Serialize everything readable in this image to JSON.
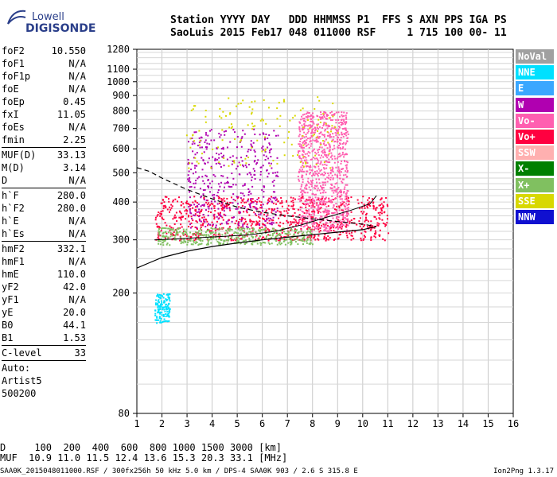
{
  "logo": {
    "line1": "Lowell",
    "line2": "DIGISONDE"
  },
  "header": {
    "line1": "Station YYYY DAY   DDD HHMMSS P1  FFS S AXN PPS IGA PS",
    "line2": "SaoLuis 2015 Feb17 048 011000 RSF     1 715 100 00- 11"
  },
  "params": [
    {
      "k": "foF2",
      "v": "10.550"
    },
    {
      "k": "foF1",
      "v": "N/A"
    },
    {
      "k": "foF1p",
      "v": "N/A"
    },
    {
      "k": "foE",
      "v": "N/A"
    },
    {
      "k": "foEp",
      "v": "0.45"
    },
    {
      "k": "fxI",
      "v": "11.05"
    },
    {
      "k": "foEs",
      "v": "N/A"
    },
    {
      "k": "fmin",
      "v": "2.25"
    },
    {
      "sep": true
    },
    {
      "k": "MUF(D)",
      "v": "33.13"
    },
    {
      "k": "M(D)",
      "v": "3.14"
    },
    {
      "k": "D",
      "v": "N/A"
    },
    {
      "sep": true
    },
    {
      "k": "h`F",
      "v": "280.0"
    },
    {
      "k": "h`F2",
      "v": "280.0"
    },
    {
      "k": "h`E",
      "v": "N/A"
    },
    {
      "k": "h`Es",
      "v": "N/A"
    },
    {
      "sep": true
    },
    {
      "k": "hmF2",
      "v": "332.1"
    },
    {
      "k": "hmF1",
      "v": "N/A"
    },
    {
      "k": "hmE",
      "v": "110.0"
    },
    {
      "k": "yF2",
      "v": "42.0"
    },
    {
      "k": "yF1",
      "v": "N/A"
    },
    {
      "k": "yE",
      "v": "20.0"
    },
    {
      "k": "B0",
      "v": "44.1"
    },
    {
      "k": "B1",
      "v": "1.53"
    },
    {
      "sep": true
    },
    {
      "k": "C-level",
      "v": "33"
    },
    {
      "sep": true
    },
    {
      "k": "Auto:",
      "v": ""
    },
    {
      "k": "Artist5",
      "v": ""
    },
    {
      "k": "500200",
      "v": ""
    }
  ],
  "legend": [
    {
      "label": "NoVal",
      "color": "#a0a0a0"
    },
    {
      "label": "NNE",
      "color": "#00e0ff"
    },
    {
      "label": "E",
      "color": "#3aa7ff"
    },
    {
      "label": "W",
      "color": "#b000b0"
    },
    {
      "label": "Vo-",
      "color": "#ff5fb0"
    },
    {
      "label": "Vo+",
      "color": "#ff0040"
    },
    {
      "label": "SSW",
      "color": "#ffb0b0"
    },
    {
      "label": "X-",
      "color": "#008000"
    },
    {
      "label": "X+",
      "color": "#80c060"
    },
    {
      "label": "SSE",
      "color": "#d8d800"
    },
    {
      "label": "NNW",
      "color": "#1010d0"
    }
  ],
  "footer": {
    "d_line": "D     100  200  400  600  800 1000 1500 3000 [km]",
    "muf_line": "MUF  10.9 11.0 11.5 12.4 13.6 15.3 20.3 33.1 [MHz]",
    "file_line": "SAA0K_2015048011000.RSF / 300fx256h 50 kHz 5.0 km / DPS-4 SAA0K 903 / 2.6 S 315.8 E",
    "version": "Ion2Png 1.3.17"
  },
  "chart_data": {
    "type": "scatter",
    "xlim": [
      1,
      16
    ],
    "x_ticks": [
      "1",
      "2",
      "3",
      "4",
      "5",
      "6",
      "7",
      "8",
      "9",
      "10",
      "11",
      "12",
      "13",
      "14",
      "15",
      "16"
    ],
    "ylim": [
      80,
      1280
    ],
    "y_ticks": [
      "80",
      "200",
      "300",
      "400",
      "500",
      "600",
      "700",
      "800",
      "900",
      "1000",
      "1100",
      "1280"
    ],
    "y_scale": "log",
    "grid": true,
    "traces": [
      {
        "name": "Vo+",
        "color": "#ff0040",
        "x0": 1.7,
        "x1": 11.0,
        "y0": 300,
        "y1": 420,
        "density": "high"
      },
      {
        "name": "Vo-",
        "color": "#ff5fb0",
        "x0": 7.4,
        "x1": 9.4,
        "y0": 320,
        "y1": 800,
        "density": "high"
      },
      {
        "name": "W",
        "color": "#b000b0",
        "x0": 3.0,
        "x1": 6.6,
        "y0": 330,
        "y1": 700,
        "density": "medium"
      },
      {
        "name": "SSE",
        "color": "#d8d800",
        "x0": 2.9,
        "x1": 9.0,
        "y0": 520,
        "y1": 900,
        "density": "low"
      },
      {
        "name": "X+",
        "color": "#80c060",
        "x0": 1.8,
        "x1": 8.0,
        "y0": 290,
        "y1": 330,
        "density": "medium"
      },
      {
        "name": "NNE",
        "color": "#00e0ff",
        "x0": 1.7,
        "x1": 2.3,
        "y0": 160,
        "y1": 200,
        "density": "low"
      }
    ],
    "profile_solid": [
      [
        1.0,
        242
      ],
      [
        1.5,
        252
      ],
      [
        2.0,
        262
      ],
      [
        3.0,
        275
      ],
      [
        4.0,
        285
      ],
      [
        5.0,
        293
      ],
      [
        6.0,
        300
      ],
      [
        7.0,
        306
      ],
      [
        8.0,
        312
      ],
      [
        9.0,
        318
      ],
      [
        10.0,
        324
      ],
      [
        10.55,
        332
      ]
    ],
    "profile_dashed": [
      [
        1.0,
        520
      ],
      [
        1.5,
        505
      ],
      [
        2.0,
        480
      ],
      [
        3.0,
        440
      ],
      [
        4.0,
        410
      ],
      [
        5.0,
        385
      ],
      [
        6.0,
        370
      ],
      [
        7.0,
        360
      ],
      [
        8.0,
        352
      ],
      [
        9.0,
        345
      ],
      [
        10.0,
        338
      ],
      [
        10.55,
        332
      ]
    ],
    "trace_line": [
      [
        1.7,
        300
      ],
      [
        2.5,
        302
      ],
      [
        3.5,
        305
      ],
      [
        4.5,
        308
      ],
      [
        5.5,
        312
      ],
      [
        6.5,
        320
      ],
      [
        7.5,
        335
      ],
      [
        8.5,
        355
      ],
      [
        9.5,
        375
      ],
      [
        10.3,
        395
      ],
      [
        10.55,
        420
      ]
    ]
  }
}
